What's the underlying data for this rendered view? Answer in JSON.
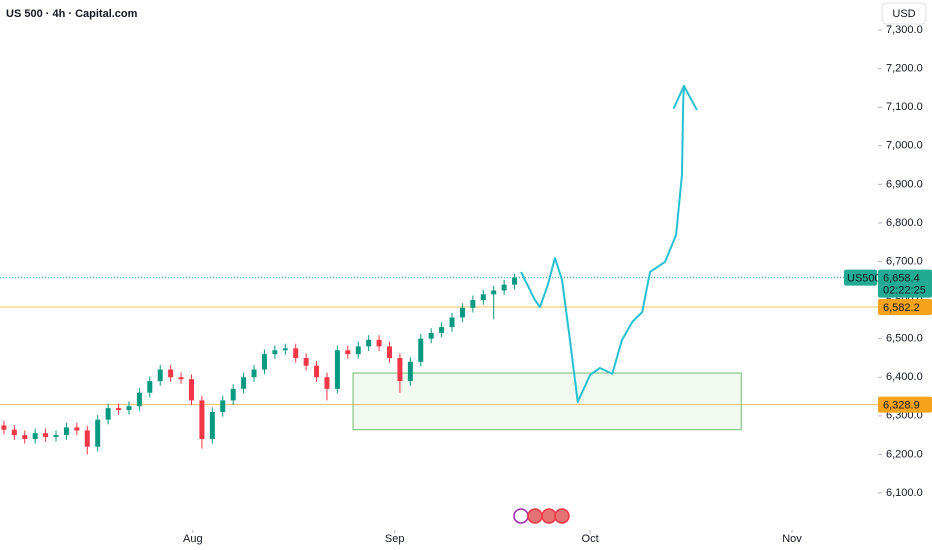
{
  "chart_data": {
    "type": "candlestick",
    "title": "US 500 · 4h · Capital.com",
    "currency": "USD",
    "xlim": [
      1.4,
      136.2
    ],
    "xticks": [
      {
        "value": 31,
        "label": "Aug"
      },
      {
        "value": 62,
        "label": "Sep"
      },
      {
        "value": 92,
        "label": "Oct"
      },
      {
        "value": 123,
        "label": "Nov"
      }
    ],
    "ylim": [
      6004,
      7378
    ],
    "yticks": [
      {
        "value": 6100,
        "label": "6,100.0"
      },
      {
        "value": 6200,
        "label": "6,200.0"
      },
      {
        "value": 6300,
        "label": "6,300.0"
      },
      {
        "value": 6400,
        "label": "6,400.0"
      },
      {
        "value": 6500,
        "label": "6,500.0"
      },
      {
        "value": 6600,
        "label": "6,600.0"
      },
      {
        "value": 6700,
        "label": "6,700.0"
      },
      {
        "value": 6800,
        "label": "6,800.0"
      },
      {
        "value": 6900,
        "label": "6,900.0"
      },
      {
        "value": 7000,
        "label": "7,000.0"
      },
      {
        "value": 7100,
        "label": "7,100.0"
      },
      {
        "value": 7200,
        "label": "7,200.0"
      },
      {
        "value": 7300,
        "label": "7,300.0"
      }
    ],
    "series": [
      {
        "name": "US500",
        "up_color": "#089981",
        "down_color": "#f23645",
        "x": [
          2,
          3.6,
          5.2,
          6.8,
          8.4,
          10,
          11.6,
          13.2,
          14.8,
          16.4,
          18,
          19.6,
          21.2,
          22.8,
          24.4,
          26,
          27.6,
          29.2,
          30.8,
          32.4,
          34,
          35.6,
          37.2,
          38.8,
          40.4,
          42,
          43.6,
          45.2,
          46.8,
          48.4,
          50,
          51.6,
          53.2,
          54.8,
          56.4,
          58,
          59.6,
          61.2,
          62.8,
          64.4,
          66,
          67.6,
          69.2,
          70.8,
          72.4,
          74,
          75.6,
          77.2,
          78.8,
          80.4
        ],
        "open": [
          6275,
          6264,
          6250,
          6240,
          6255,
          6245,
          6250,
          6270,
          6262,
          6220,
          6290,
          6320,
          6315,
          6325,
          6360,
          6390,
          6420,
          6400,
          6395,
          6340,
          6240,
          6310,
          6340,
          6370,
          6400,
          6420,
          6460,
          6470,
          6475,
          6450,
          6430,
          6400,
          6370,
          6470,
          6460,
          6480,
          6497,
          6480,
          6450,
          6390,
          6440,
          6500,
          6515,
          6530,
          6555,
          6580,
          6600,
          6615,
          6625,
          6640
        ],
        "high": [
          6287,
          6276,
          6262,
          6267,
          6267,
          6262,
          6282,
          6282,
          6274,
          6302,
          6332,
          6332,
          6337,
          6372,
          6402,
          6432,
          6432,
          6412,
          6407,
          6352,
          6322,
          6352,
          6382,
          6412,
          6432,
          6472,
          6482,
          6487,
          6487,
          6462,
          6442,
          6412,
          6482,
          6482,
          6492,
          6509,
          6509,
          6492,
          6462,
          6452,
          6512,
          6527,
          6542,
          6567,
          6592,
          6612,
          6627,
          6637,
          6652,
          6668
        ],
        "low": [
          6252,
          6238,
          6228,
          6228,
          6233,
          6233,
          6238,
          6250,
          6200,
          6208,
          6278,
          6303,
          6303,
          6313,
          6348,
          6378,
          6388,
          6383,
          6328,
          6215,
          6228,
          6298,
          6328,
          6358,
          6388,
          6408,
          6448,
          6458,
          6438,
          6418,
          6388,
          6340,
          6358,
          6448,
          6448,
          6468,
          6468,
          6438,
          6360,
          6378,
          6428,
          6488,
          6503,
          6518,
          6543,
          6568,
          6588,
          6550,
          6613,
          6628
        ],
        "close": [
          6264,
          6250,
          6240,
          6255,
          6245,
          6250,
          6270,
          6262,
          6220,
          6290,
          6320,
          6315,
          6325,
          6360,
          6390,
          6420,
          6400,
          6395,
          6340,
          6240,
          6310,
          6340,
          6370,
          6400,
          6420,
          6460,
          6470,
          6475,
          6450,
          6430,
          6400,
          6370,
          6470,
          6460,
          6480,
          6497,
          6480,
          6450,
          6390,
          6440,
          6500,
          6515,
          6530,
          6555,
          6580,
          6600,
          6615,
          6625,
          6640,
          6658.4
        ]
      }
    ],
    "last_price": {
      "value": 6658.4,
      "label": "6,658.4",
      "countdown": "02:22:25",
      "color": "#22ab94"
    },
    "levels": [
      {
        "value": 6582.2,
        "label": "6,582.2",
        "color": "#f7a21b"
      },
      {
        "value": 6328.9,
        "label": "6,328.9",
        "color": "#f7a21b"
      }
    ],
    "zone": {
      "x": [
        55.6,
        115.2
      ],
      "y": [
        6264,
        6411
      ],
      "color": "#4caf50"
    },
    "projection": {
      "color": "#26c0d3",
      "x": [
        81.4,
        83.5,
        84.3,
        85.5,
        86.6,
        87.7,
        88.9,
        90.1,
        92.0,
        93.5,
        95.4,
        96.9,
        98.5,
        100.0,
        101.2,
        103.5,
        105.2,
        106.1,
        106.3,
        106.4,
        108.4
      ],
      "y": [
        6673,
        6601,
        6582,
        6639,
        6709,
        6652,
        6497,
        6336,
        6406,
        6424,
        6409,
        6497,
        6544,
        6569,
        6673,
        6699,
        6769,
        6924,
        7119,
        7155,
        7093
      ]
    }
  }
}
